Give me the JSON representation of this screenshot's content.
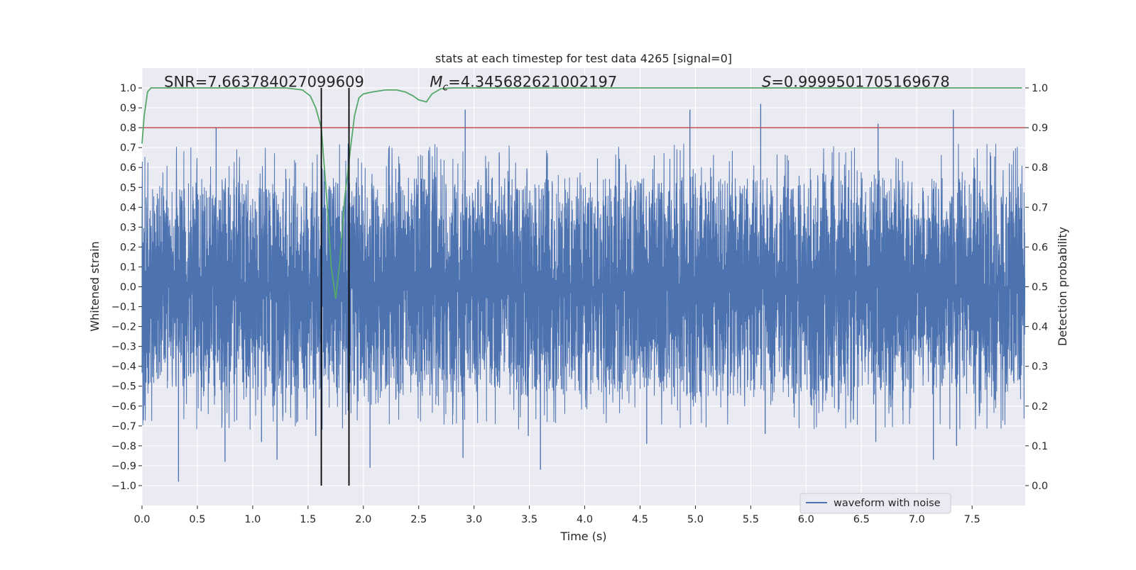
{
  "chart_data": {
    "type": "line",
    "title": "stats at each timestep for test data 4265 [signal=0]",
    "xlabel": "Time (s)",
    "ylabel": "Whitened strain",
    "ylabel_right": "Detection probability",
    "xlim": [
      0.0,
      7.98
    ],
    "ylim": [
      -1.1,
      1.1
    ],
    "ylim_right": [
      -0.05,
      1.05
    ],
    "x_ticks": [
      0.0,
      0.5,
      1.0,
      1.5,
      2.0,
      2.5,
      3.0,
      3.5,
      4.0,
      4.5,
      5.0,
      5.5,
      6.0,
      6.5,
      7.0,
      7.5
    ],
    "x_tick_labels": [
      "0.0",
      "0.5",
      "1.0",
      "1.5",
      "2.0",
      "2.5",
      "3.0",
      "3.5",
      "4.0",
      "4.5",
      "5.0",
      "5.5",
      "6.0",
      "6.5",
      "7.0",
      "7.5"
    ],
    "y_ticks": [
      1.0,
      0.9,
      0.8,
      0.7,
      0.6,
      0.5,
      0.4,
      0.3,
      0.2,
      0.1,
      0.0,
      -0.1,
      -0.2,
      -0.3,
      -0.4,
      -0.5,
      -0.6,
      -0.7,
      -0.8,
      -0.9,
      -1.0
    ],
    "y_tick_labels": [
      "1.0",
      "0.9",
      "0.8",
      "0.7",
      "0.6",
      "0.5",
      "0.4",
      "0.3",
      "0.2",
      "0.1",
      "0.0",
      "−0.1",
      "−0.2",
      "−0.3",
      "−0.4",
      "−0.5",
      "−0.6",
      "−0.7",
      "−0.8",
      "−0.9",
      "−1.0"
    ],
    "y_right_ticks": [
      1.0,
      0.9,
      0.8,
      0.7,
      0.6,
      0.5,
      0.4,
      0.3,
      0.2,
      0.1,
      0.0
    ],
    "y_right_tick_labels": [
      "1.0",
      "0.9",
      "0.8",
      "0.7",
      "0.6",
      "0.5",
      "0.4",
      "0.3",
      "0.2",
      "0.1",
      "0.0"
    ],
    "grid": true,
    "series": [
      {
        "name": "waveform with noise",
        "color": "#4c72b0",
        "kind": "noise",
        "envelope_typical": [
          -0.4,
          0.4
        ],
        "spikes": [
          {
            "x": 0.33,
            "y": -0.98
          },
          {
            "x": 0.75,
            "y": -0.88
          },
          {
            "x": 0.67,
            "y": 0.8
          },
          {
            "x": 1.08,
            "y": -0.78
          },
          {
            "x": 1.22,
            "y": -0.87
          },
          {
            "x": 1.57,
            "y": -0.75
          },
          {
            "x": 2.06,
            "y": -0.91
          },
          {
            "x": 2.92,
            "y": 0.89
          },
          {
            "x": 2.9,
            "y": -0.86
          },
          {
            "x": 3.6,
            "y": -0.92
          },
          {
            "x": 3.49,
            "y": -0.75
          },
          {
            "x": 4.95,
            "y": 0.89
          },
          {
            "x": 4.56,
            "y": -0.79
          },
          {
            "x": 5.59,
            "y": 0.92
          },
          {
            "x": 5.63,
            "y": -0.74
          },
          {
            "x": 6.65,
            "y": 0.82
          },
          {
            "x": 7.15,
            "y": -0.87
          },
          {
            "x": 7.33,
            "y": 0.89
          },
          {
            "x": 7.36,
            "y": -0.8
          },
          {
            "x": 6.63,
            "y": -0.78
          },
          {
            "x": 4.72,
            "y": -0.11
          }
        ]
      },
      {
        "name": "detection probability",
        "color": "#55a868",
        "axis": "right",
        "x": [
          0.0,
          0.02,
          0.05,
          0.08,
          0.15,
          0.3,
          0.6,
          1.0,
          1.3,
          1.45,
          1.52,
          1.57,
          1.62,
          1.67,
          1.71,
          1.75,
          1.79,
          1.83,
          1.88,
          1.92,
          1.96,
          2.0,
          2.08,
          2.2,
          2.3,
          2.38,
          2.45,
          2.5,
          2.57,
          2.62,
          2.7,
          2.8,
          3.0,
          4.0,
          5.0,
          6.0,
          7.0,
          7.95
        ],
        "y": [
          0.86,
          0.93,
          0.99,
          1.0,
          1.0,
          1.0,
          1.0,
          1.0,
          1.0,
          0.995,
          0.98,
          0.95,
          0.9,
          0.72,
          0.55,
          0.47,
          0.57,
          0.72,
          0.84,
          0.93,
          0.975,
          0.985,
          0.99,
          0.995,
          0.995,
          0.99,
          0.98,
          0.97,
          0.965,
          0.985,
          0.998,
          1.0,
          1.0,
          1.0,
          1.0,
          1.0,
          1.0,
          1.0
        ]
      }
    ],
    "threshold": {
      "value": 0.9,
      "axis": "right",
      "color": "#c44e52"
    },
    "vlines": [
      {
        "x": 1.62,
        "color": "#000000"
      },
      {
        "x": 1.87,
        "color": "#000000"
      }
    ],
    "vlines_ymax": 1.0,
    "vlines_ymin": -1.0,
    "annotations": [
      {
        "text": "SNR=7.663784027099609",
        "x": 0.2,
        "y": 1.02,
        "math_symbol": "",
        "math_sub": ""
      },
      {
        "text": "=4.345682621002197",
        "x": 2.6,
        "y": 1.02,
        "math_symbol": "M",
        "math_sub": "c"
      },
      {
        "text": "=0.9999501705169678",
        "x": 5.6,
        "y": 1.02,
        "math_symbol": "S",
        "math_sub": ""
      }
    ],
    "legend": {
      "entries": [
        "waveform with noise"
      ],
      "position": "lower-right"
    },
    "colors": {
      "background": "#eaeaf2",
      "grid": "#ffffff"
    }
  }
}
